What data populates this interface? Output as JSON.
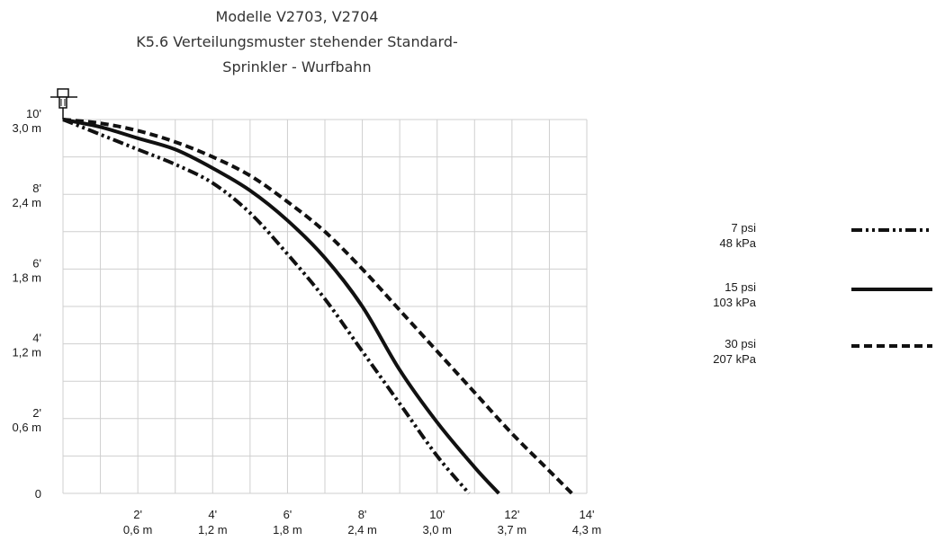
{
  "chart_data": {
    "type": "line",
    "title": [
      "Modelle V2703, V2704",
      "K5.6 Verteilungsmuster stehender Standard-",
      "Sprinkler - Wurfbahn"
    ],
    "xlabel": "",
    "ylabel": "",
    "xlim": [
      0,
      14
    ],
    "ylim": [
      0,
      10
    ],
    "grid": true,
    "legend_position": "right",
    "x_ticks": [
      {
        "value": 2,
        "ft": "2'",
        "m": "0,6 m"
      },
      {
        "value": 4,
        "ft": "4'",
        "m": "1,2 m"
      },
      {
        "value": 6,
        "ft": "6'",
        "m": "1,8 m"
      },
      {
        "value": 8,
        "ft": "8'",
        "m": "2,4 m"
      },
      {
        "value": 10,
        "ft": "10'",
        "m": "3,0 m"
      },
      {
        "value": 12,
        "ft": "12'",
        "m": "3,7 m"
      },
      {
        "value": 14,
        "ft": "14'",
        "m": "4,3 m"
      }
    ],
    "y_ticks": [
      {
        "value": 0,
        "ft": "0",
        "m": ""
      },
      {
        "value": 2,
        "ft": "2'",
        "m": "0,6 m"
      },
      {
        "value": 4,
        "ft": "4'",
        "m": "1,2 m"
      },
      {
        "value": 6,
        "ft": "6'",
        "m": "1,8 m"
      },
      {
        "value": 8,
        "ft": "8'",
        "m": "2,4 m"
      },
      {
        "value": 10,
        "ft": "10'",
        "m": "3,0 m"
      }
    ],
    "series": [
      {
        "name": "7 psi",
        "name_2": "48 kPa",
        "dash": "dashdotdot",
        "x": [
          0,
          1,
          2,
          3,
          4,
          5,
          6,
          7,
          8,
          9,
          10,
          10.85
        ],
        "y": [
          10,
          9.6,
          9.2,
          8.8,
          8.3,
          7.5,
          6.4,
          5.2,
          3.8,
          2.4,
          1.0,
          0
        ]
      },
      {
        "name": "15 psi",
        "name_2": "103 kPa",
        "dash": "solid",
        "x": [
          0,
          1,
          2,
          3,
          4,
          5,
          6,
          7,
          8,
          9,
          10,
          11,
          11.65
        ],
        "y": [
          10,
          9.8,
          9.5,
          9.2,
          8.7,
          8.1,
          7.3,
          6.3,
          5.0,
          3.3,
          1.9,
          0.7,
          0
        ]
      },
      {
        "name": "30 psi",
        "name_2": "207 kPa",
        "dash": "dashed",
        "x": [
          0,
          1,
          2,
          3,
          4,
          5,
          6,
          7,
          8,
          9,
          10,
          11,
          12,
          13,
          13.6
        ],
        "y": [
          10,
          9.9,
          9.7,
          9.4,
          9.0,
          8.5,
          7.8,
          7.0,
          6.0,
          4.9,
          3.8,
          2.7,
          1.6,
          0.6,
          0
        ]
      }
    ]
  },
  "colors": {
    "line": "#111111",
    "grid": "#cfcfcf",
    "title": "#333333"
  },
  "icons": {
    "sprinkler": "sprinkler-icon"
  }
}
